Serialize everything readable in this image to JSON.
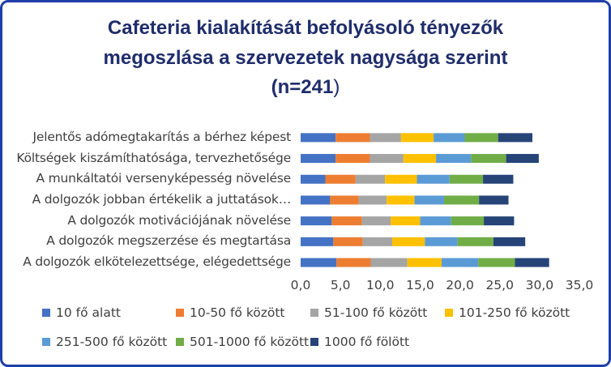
{
  "chart_data": {
    "type": "bar",
    "orientation": "horizontal",
    "stacked": true,
    "title_lines": [
      "Cafeteria kialakítását befolyásoló tényezők",
      "megoszlása a szervezetek nagysága szerint"
    ],
    "title_n": "(n=241",
    "title_close": ")",
    "categories": [
      "Jelentős adómegtakarítás a bérhez képest",
      "Költségek kiszámíthatósága, tervezhetősége",
      "A munkáltatói versenyképesség növelése",
      "A dolgozók jobban értékelik a juttatások…",
      "A dolgozók motivációjának növelése",
      "A dolgozók megszerzése és megtartása",
      "A dolgozók elkötelezettsége, elégedettsége"
    ],
    "series": [
      {
        "name": "10 fő alatt",
        "color": "#4472c4",
        "values": [
          4.4,
          4.4,
          3.1,
          3.7,
          3.9,
          4.1,
          4.5
        ]
      },
      {
        "name": "10-50 fő között",
        "color": "#ed7d31",
        "values": [
          4.3,
          4.3,
          3.8,
          3.6,
          3.8,
          3.7,
          4.3
        ]
      },
      {
        "name": "51-100 fő között",
        "color": "#a5a5a5",
        "values": [
          3.9,
          4.2,
          3.7,
          3.5,
          3.6,
          3.7,
          4.6
        ]
      },
      {
        "name": "101-250 fő között",
        "color": "#ffc000",
        "values": [
          4.1,
          4.1,
          4.0,
          3.5,
          3.7,
          4.1,
          4.3
        ]
      },
      {
        "name": "251-500 fő között",
        "color": "#5b9bd5",
        "values": [
          3.9,
          4.4,
          4.1,
          3.7,
          3.9,
          4.1,
          4.6
        ]
      },
      {
        "name": "501-1000 fő között",
        "color": "#70ad47",
        "values": [
          4.2,
          4.4,
          4.2,
          4.4,
          4.1,
          4.5,
          4.6
        ]
      },
      {
        "name": "1000 fő fölött",
        "color": "#264478",
        "values": [
          4.3,
          4.1,
          3.8,
          3.7,
          3.8,
          4.0,
          4.3
        ]
      }
    ],
    "xlim": [
      0,
      35
    ],
    "xticks": [
      "0,0",
      "5,0",
      "10,0",
      "15,0",
      "20,0",
      "25,0",
      "30,0",
      "35,0"
    ],
    "legend_position": "bottom"
  }
}
